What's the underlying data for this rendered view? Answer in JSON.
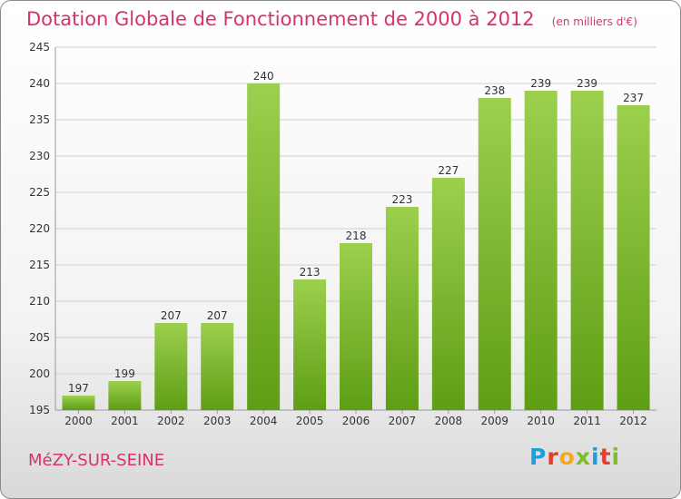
{
  "header": {
    "title": "Dotation Globale de Fonctionnement de 2000 à 2012",
    "unit": "(en milliers d'€)"
  },
  "footer": {
    "city": "MéZY-SUR-SEINE",
    "logo": "Proxiti",
    "logo_colors": [
      "#1aa0e0",
      "#e63b2e",
      "#f7a81b",
      "#7bbf2a",
      "#1aa0e0",
      "#e63b2e",
      "#7bbf2a"
    ]
  },
  "chart_data": {
    "type": "bar",
    "title": "Dotation Globale de Fonctionnement de 2000 à 2012",
    "categories": [
      "2000",
      "2001",
      "2002",
      "2003",
      "2004",
      "2005",
      "2006",
      "2007",
      "2008",
      "2009",
      "2010",
      "2011",
      "2012"
    ],
    "values": [
      197,
      199,
      207,
      207,
      240,
      213,
      218,
      223,
      227,
      238,
      239,
      239,
      237
    ],
    "ylim": [
      195,
      245
    ],
    "yticks": [
      195,
      200,
      205,
      210,
      215,
      220,
      225,
      230,
      235,
      240,
      245
    ],
    "grid": true,
    "colors": {
      "bar_top": "#9ccf4e",
      "bar_bottom": "#5e9e14",
      "grid": "#d0d0d0",
      "text": "#333333"
    }
  }
}
